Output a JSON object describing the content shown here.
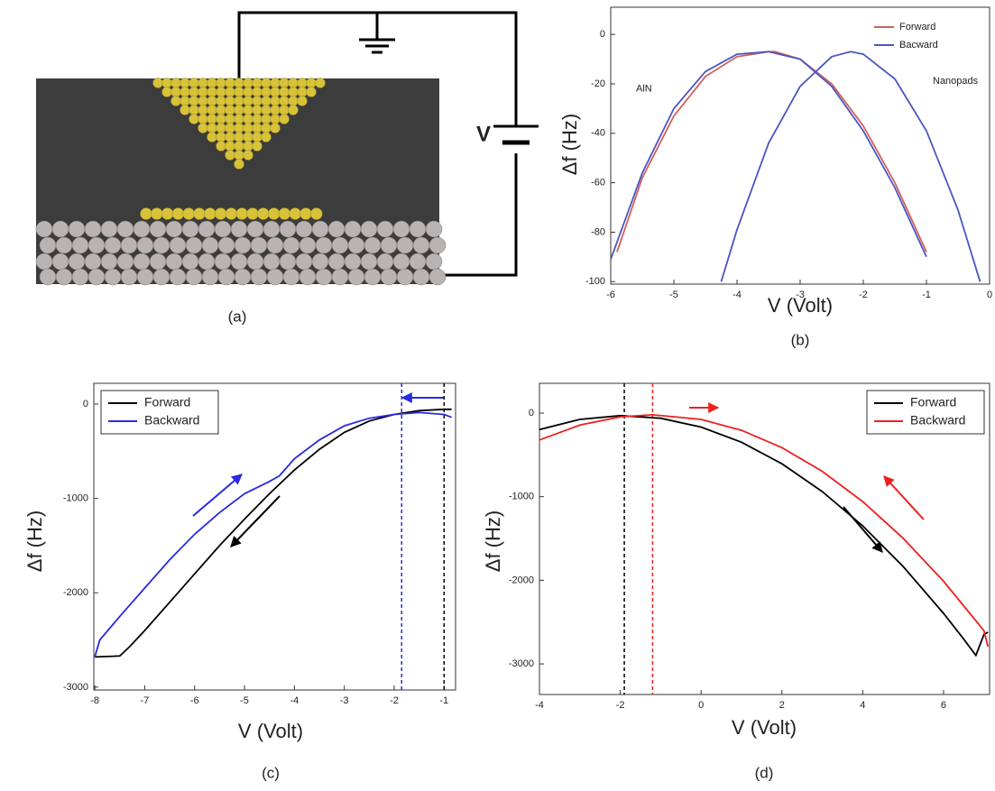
{
  "diagram": {
    "voltage_label": "V",
    "caption": "(a)"
  },
  "chart_data": [
    {
      "type": "line",
      "caption": "(b)",
      "x_label": "V (Volt)",
      "y_label": "Δf (Hz)",
      "annotations": [
        {
          "text": "AlN",
          "x": -5.6,
          "y": -22
        },
        {
          "text": "Nanopads",
          "x": -0.9,
          "y": -19
        }
      ],
      "xlim": [
        -6,
        0
      ],
      "ylim": [
        -101,
        11
      ],
      "xticks": [
        -6,
        -5,
        -4,
        -3,
        -2,
        -1,
        0
      ],
      "yticks": [
        0,
        -20,
        -40,
        -60,
        -80,
        -100
      ],
      "legend": "upper right",
      "legend_frame": false,
      "series": [
        {
          "name": "Forward",
          "color": "#d0605a",
          "x": [
            -5.9,
            -5.5,
            -5,
            -4.5,
            -4,
            -3.5,
            -3.4,
            -3,
            -2.5,
            -2,
            -1.5,
            -1
          ],
          "values": [
            -88,
            -58,
            -33,
            -17,
            -9,
            -7,
            -7,
            -10,
            -20,
            -37,
            -60,
            -88
          ]
        },
        {
          "name": "Bacward",
          "color": "#4a56c0",
          "x": [
            -6,
            -5.5,
            -5,
            -4.5,
            -4,
            -3.5,
            -3,
            -2.5,
            -2,
            -1.5,
            -1
          ],
          "values": [
            -91,
            -56,
            -30,
            -15,
            -8,
            -7,
            -10,
            -21,
            -39,
            -62,
            -90
          ]
        },
        {
          "color": "#4a56c0",
          "x": [
            -4.25,
            -4,
            -3.5,
            -3,
            -2.5,
            -2.2,
            -2,
            -1.5,
            -1,
            -0.5,
            -0.15
          ],
          "values": [
            -100,
            -79,
            -44,
            -21,
            -9,
            -7,
            -8,
            -18,
            -39,
            -71,
            -100
          ]
        }
      ]
    },
    {
      "type": "line",
      "caption": "(c)",
      "x_label": "V (Volt)",
      "y_label": "Δf (Hz)",
      "xlim": [
        -8.02,
        -0.77
      ],
      "ylim": [
        -3030,
        220
      ],
      "xticks": [
        -8,
        -7,
        -6,
        -5,
        -4,
        -3,
        -2,
        -1
      ],
      "yticks": [
        0,
        -1000,
        -2000,
        -3000
      ],
      "legend": "upper left",
      "legend_frame": true,
      "vlines": [
        {
          "x": -1.85,
          "color": "#2a2ae0"
        },
        {
          "x": -1,
          "color": "#000000"
        }
      ],
      "series": [
        {
          "name": "Forward",
          "color": "#000000",
          "x": [
            -8,
            -7.5,
            -7.3,
            -7,
            -6.5,
            -6,
            -5.5,
            -5,
            -4.5,
            -4,
            -3.5,
            -3,
            -2.5,
            -2,
            -1.5,
            -1,
            -0.85
          ],
          "values": [
            -2680,
            -2670,
            -2570,
            -2400,
            -2100,
            -1800,
            -1500,
            -1220,
            -950,
            -700,
            -480,
            -300,
            -180,
            -110,
            -70,
            -55,
            -55
          ]
        },
        {
          "name": "Backward",
          "color": "#2a2ae0",
          "x": [
            -8,
            -7.9,
            -7.5,
            -7,
            -6.5,
            -6,
            -5.5,
            -5,
            -4.5,
            -4.3,
            -4,
            -3.5,
            -3,
            -2.5,
            -2,
            -1.5,
            -1,
            -0.85
          ],
          "values": [
            -2680,
            -2500,
            -2250,
            -1950,
            -1650,
            -1380,
            -1150,
            -950,
            -820,
            -760,
            -580,
            -380,
            -230,
            -150,
            -110,
            -90,
            -110,
            -140
          ]
        }
      ]
    },
    {
      "type": "line",
      "caption": "(d)",
      "x_label": "V (Volt)",
      "y_label": "Δf (Hz)",
      "xlim": [
        -4,
        7.14
      ],
      "ylim": [
        -3366,
        356
      ],
      "xticks": [
        -4,
        -2,
        0,
        2,
        4,
        6
      ],
      "yticks": [
        0,
        -1000,
        -2000,
        -3000
      ],
      "legend": "upper right",
      "legend_frame": true,
      "vlines": [
        {
          "x": -1.9,
          "color": "#000000"
        },
        {
          "x": -1.2,
          "color": "#ee2020"
        }
      ],
      "series": [
        {
          "name": "Forward",
          "color": "#000000",
          "x": [
            -4,
            -3,
            -2,
            -1,
            0,
            1,
            2,
            3,
            4,
            5,
            6,
            6.5,
            6.8,
            7,
            7.1
          ],
          "values": [
            -197,
            -76,
            -30,
            -61,
            -167,
            -349,
            -606,
            -940,
            -1349,
            -1834,
            -2395,
            -2704,
            -2899,
            -2650,
            -2620
          ]
        },
        {
          "name": "Backward",
          "color": "#ee2020",
          "x": [
            -4,
            -3,
            -2,
            -1.2,
            0,
            1,
            2,
            3,
            4,
            5,
            6,
            7,
            7.1
          ],
          "values": [
            -321,
            -144,
            -45,
            -20,
            -75,
            -206,
            -413,
            -697,
            -1058,
            -1496,
            -2011,
            -2602,
            -2794
          ]
        }
      ]
    }
  ]
}
